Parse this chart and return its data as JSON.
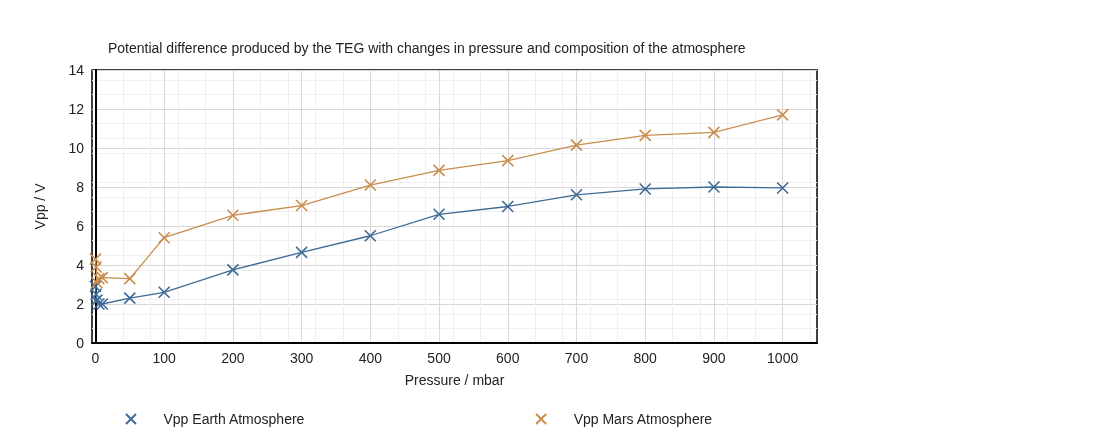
{
  "chart_data": {
    "type": "line",
    "title": "Potential difference produced by the TEG with changes in pressure and composition of the atmosphere",
    "xlabel": "Pressure / mbar",
    "ylabel": "Vpp / V",
    "series": [
      {
        "name": "Vpp Earth Atmosphere",
        "color": "#3e6b96",
        "x": [
          0,
          1,
          2,
          5,
          10,
          50,
          100,
          200,
          300,
          400,
          500,
          600,
          700,
          800,
          900,
          1000
        ],
        "values": [
          2.9,
          2.5,
          2.2,
          2.0,
          2.0,
          2.3,
          2.6,
          3.75,
          4.65,
          5.5,
          6.6,
          7.0,
          7.6,
          7.9,
          8.0,
          7.95
        ]
      },
      {
        "name": "Vpp Mars Atmosphere",
        "color": "#c98d4c",
        "x": [
          0,
          1,
          2,
          5,
          10,
          50,
          100,
          200,
          300,
          400,
          500,
          600,
          700,
          800,
          900,
          1000
        ],
        "values": [
          4.3,
          3.9,
          3.1,
          3.3,
          3.35,
          3.3,
          5.4,
          6.55,
          7.05,
          8.1,
          8.85,
          9.35,
          10.15,
          10.65,
          10.8,
          11.7
        ]
      }
    ],
    "xlim": [
      -5,
      1050
    ],
    "xticks": [
      0,
      100,
      200,
      300,
      400,
      500,
      600,
      700,
      800,
      900,
      1000
    ],
    "ylim": [
      0,
      14
    ],
    "yticks": [
      0,
      2,
      4,
      6,
      8,
      10,
      12,
      14
    ],
    "grid": true,
    "legend": "bottom",
    "marker": "cross",
    "line_style": "solid"
  }
}
